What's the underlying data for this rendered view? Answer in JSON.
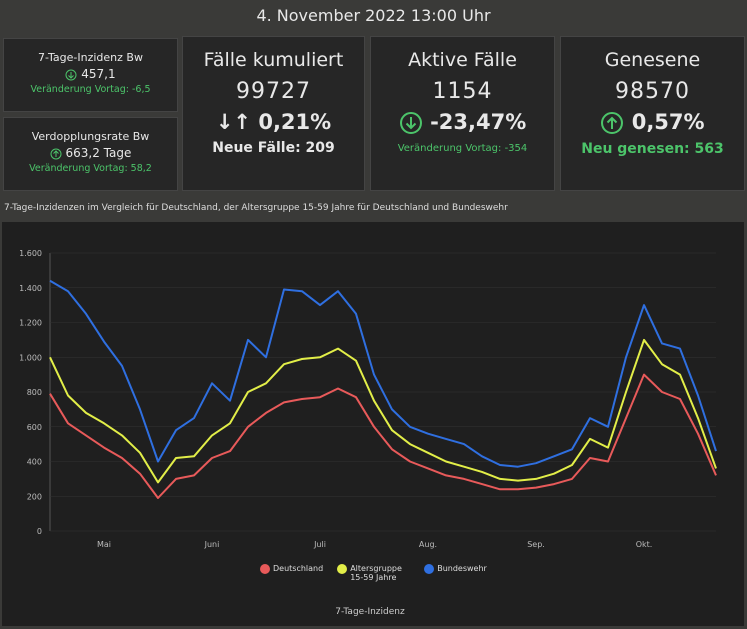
{
  "header": {
    "title": "4. November 2022 13:00 Uhr"
  },
  "cards": [
    {
      "title": "7-Tage-Inzidenz Bw",
      "value": "457,1",
      "change": "Veränderung Vortag: -6,5"
    },
    {
      "title": "Verdopplungsrate Bw",
      "value": "663,2 Tage",
      "change": "Veränderung Vortag: 58,2"
    },
    {
      "title": "Fälle kumuliert",
      "value": "99727",
      "percent": "0,21%",
      "note": "Neue Fälle: 209"
    },
    {
      "title": "Aktive Fälle",
      "value": "1154",
      "percent": "-23,47%",
      "note": "Veränderung Vortag: -354"
    },
    {
      "title": "Genesene",
      "value": "98570",
      "percent": "0,57%",
      "note": "Neu genesen: 563"
    }
  ],
  "chart_data": {
    "type": "line",
    "title": "7-Tage-Inzidenzen im Vergleich für Deutschland, der Altersgruppe 15-59 Jahre für Deutschland und Bundeswehr",
    "x_label": "7-Tage-Inzidenz",
    "categories": [
      null,
      null,
      null,
      "Mai",
      null,
      null,
      null,
      null,
      null,
      "Juni",
      null,
      null,
      null,
      null,
      null,
      "Juli",
      null,
      null,
      null,
      null,
      null,
      "Aug.",
      null,
      null,
      null,
      null,
      null,
      "Sep.",
      null,
      null,
      null,
      null,
      null,
      "Okt.",
      null,
      null,
      null,
      null
    ],
    "series": [
      {
        "name": "Deutschland",
        "color": "#e85a5a",
        "values": [
          790,
          620,
          550,
          480,
          420,
          330,
          190,
          300,
          320,
          420,
          460,
          600,
          680,
          740,
          760,
          770,
          820,
          770,
          600,
          470,
          400,
          360,
          320,
          300,
          270,
          240,
          240,
          250,
          270,
          300,
          420,
          400,
          650,
          900,
          800,
          760,
          560,
          320
        ]
      },
      {
        "name": "Altersgruppe 15-59 Jahre",
        "color": "#e2ee48",
        "values": [
          1000,
          780,
          680,
          620,
          550,
          450,
          280,
          420,
          430,
          550,
          620,
          800,
          850,
          960,
          990,
          1000,
          1050,
          980,
          750,
          580,
          500,
          450,
          400,
          370,
          340,
          300,
          290,
          300,
          330,
          380,
          530,
          480,
          800,
          1100,
          960,
          900,
          650,
          360
        ]
      },
      {
        "name": "Bundeswehr",
        "color": "#2f6fe0",
        "values": [
          1440,
          1380,
          1250,
          1090,
          950,
          700,
          400,
          580,
          650,
          850,
          750,
          1100,
          1000,
          1390,
          1380,
          1300,
          1380,
          1250,
          900,
          700,
          600,
          560,
          530,
          500,
          430,
          380,
          370,
          390,
          430,
          470,
          650,
          600,
          1000,
          1300,
          1080,
          1050,
          780,
          460
        ]
      }
    ],
    "ylim": [
      0,
      1600
    ],
    "yticks": [
      0,
      200,
      400,
      600,
      800,
      {
        "value": 1000,
        "label": "1.000"
      },
      {
        "value": 1200,
        "label": "1.200"
      },
      {
        "value": 1400,
        "label": "1.400"
      },
      {
        "value": 1600,
        "label": "1.600"
      }
    ],
    "grid": true
  }
}
